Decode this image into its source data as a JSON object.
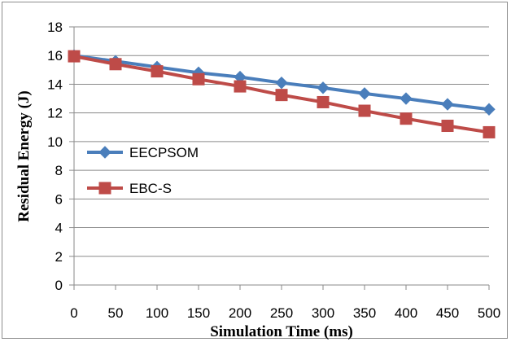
{
  "chart_data": {
    "type": "line",
    "xlabel": "Simulation Time (ms)",
    "ylabel": "Residual Energy (J)",
    "x": [
      0,
      50,
      100,
      150,
      200,
      250,
      300,
      350,
      400,
      450,
      500
    ],
    "xlim": [
      0,
      500
    ],
    "ylim": [
      0,
      18
    ],
    "yticks": [
      0,
      2,
      4,
      6,
      8,
      10,
      12,
      14,
      16,
      18
    ],
    "grid": true,
    "legend_position": "left",
    "series": [
      {
        "name": "EECPSOM",
        "color": "#4a7ebb",
        "marker": "diamond",
        "values": [
          16.0,
          15.6,
          15.2,
          14.8,
          14.5,
          14.1,
          13.75,
          13.35,
          13.0,
          12.6,
          12.25
        ]
      },
      {
        "name": "EBC-S",
        "color": "#be4b48",
        "marker": "square",
        "values": [
          15.95,
          15.4,
          14.9,
          14.35,
          13.85,
          13.25,
          12.75,
          12.15,
          11.6,
          11.1,
          10.65
        ]
      }
    ]
  }
}
